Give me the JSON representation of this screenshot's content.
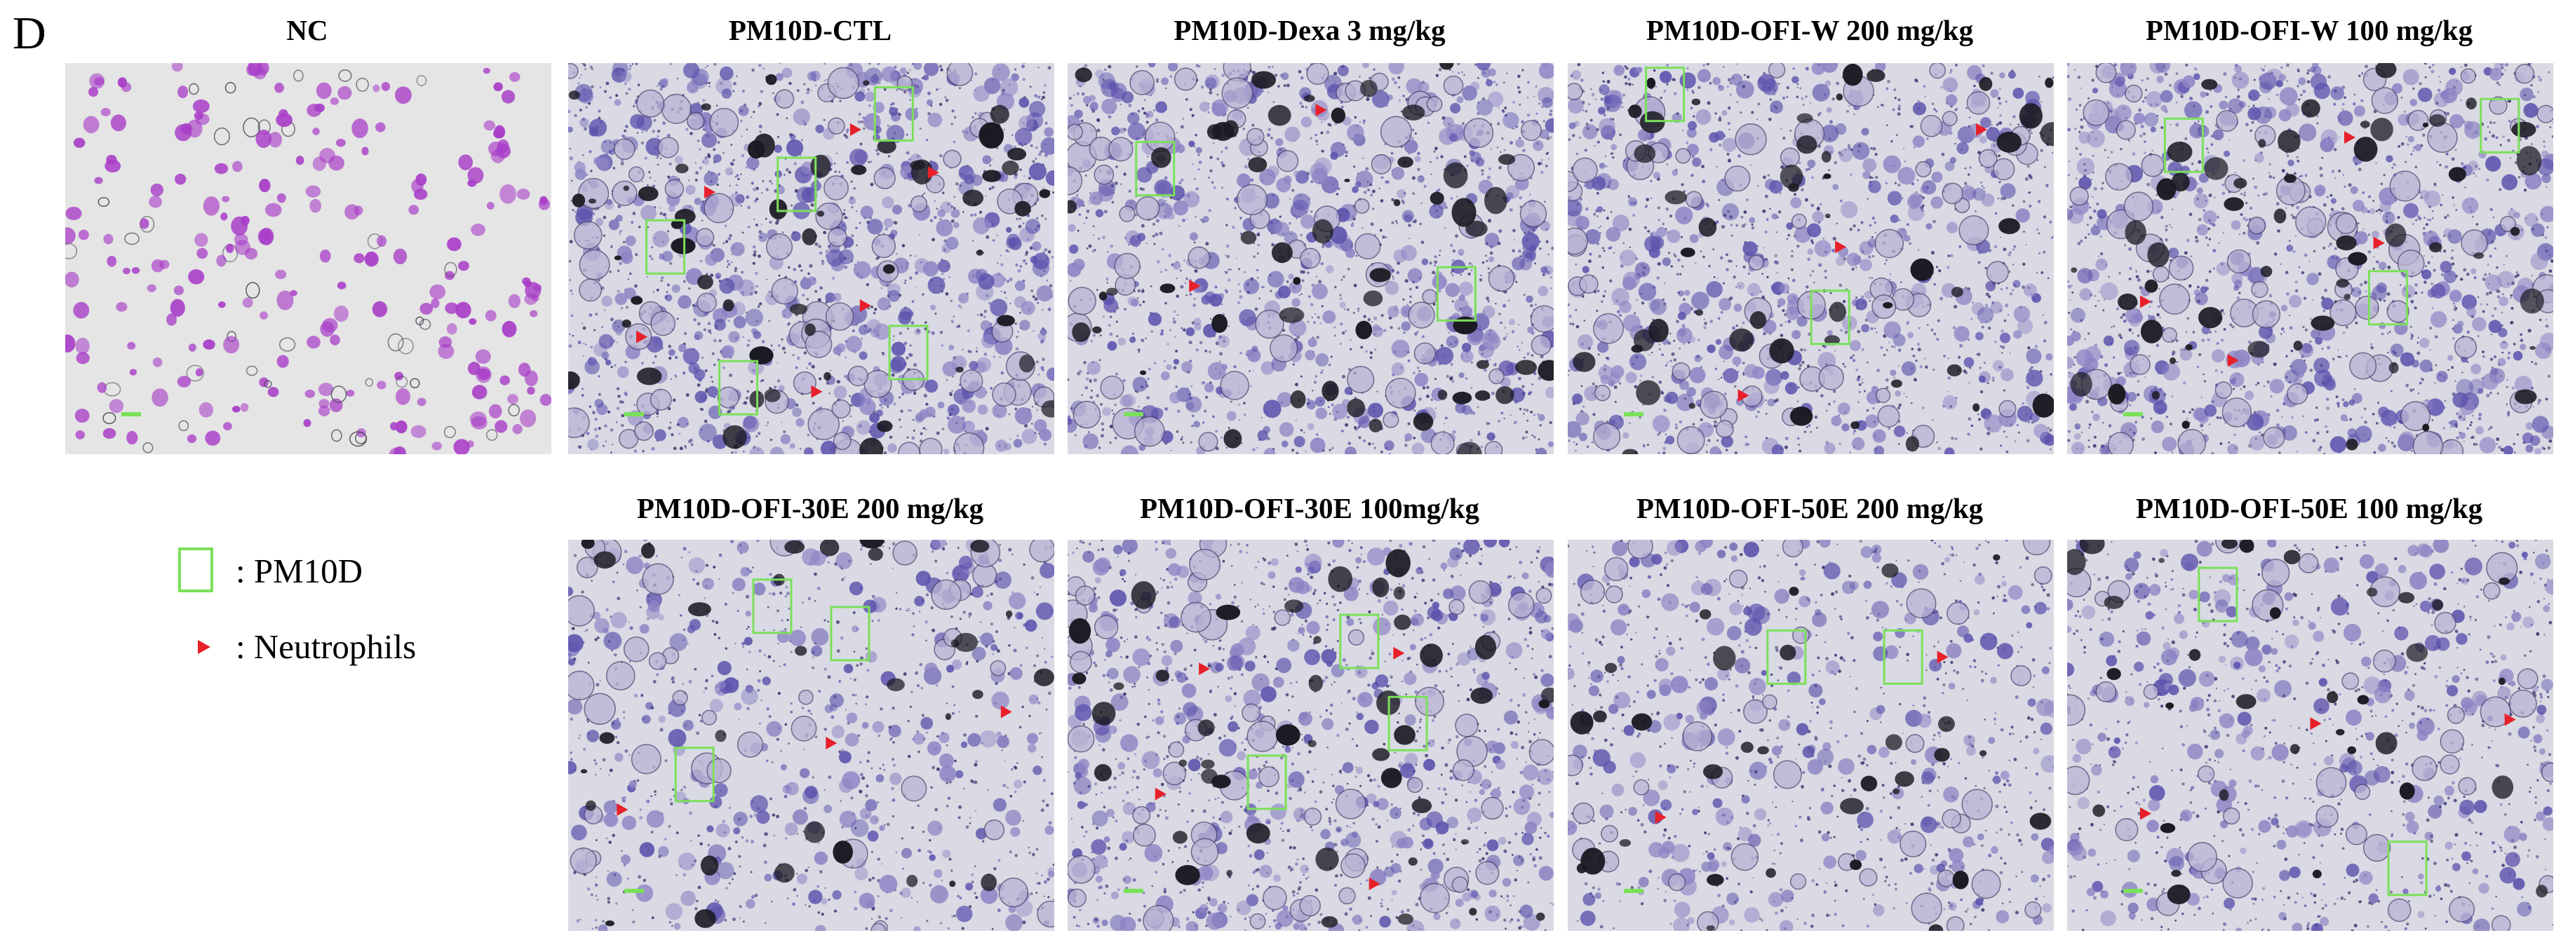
{
  "figure": {
    "panel_letter": "D",
    "colors": {
      "pm10d_box": "#7be05a",
      "neutrophil_marker": "#e8202a",
      "background_stain": "#dcdde3",
      "cell_stain": "#5a4aa8",
      "particle": "#1a1a22",
      "nc_cell": "#a93ec8"
    },
    "panels": [
      {
        "title": "NC",
        "stain": "light-purple cells on clear background"
      },
      {
        "title": "PM10D-CTL",
        "stain": "dense blue-purple cells with dark particles"
      },
      {
        "title": "PM10D-Dexa  3 mg/kg",
        "stain": "dense blue-purple cells with dark particles"
      },
      {
        "title": "PM10D-OFI-W 200 mg/kg",
        "stain": "dense blue-purple cells with dark particles"
      },
      {
        "title": "PM10D-OFI-W 100 mg/kg",
        "stain": "dense blue-purple cells with dark particles"
      },
      {
        "title": "PM10D-OFI-30E 200 mg/kg",
        "stain": "sparse blue-purple cells with dark particles"
      },
      {
        "title": "PM10D-OFI-30E 100mg/kg",
        "stain": "blue-purple cells with dark particles"
      },
      {
        "title": "PM10D-OFI-50E 200 mg/kg",
        "stain": "sparse blue-purple cells with dark particles"
      },
      {
        "title": "PM10D-OFI-50E 100 mg/kg",
        "stain": "sparse blue-purple cells with dark particles"
      }
    ],
    "legend": {
      "box_label": ": PM10D",
      "arrow_label": ": Neutrophils"
    }
  }
}
